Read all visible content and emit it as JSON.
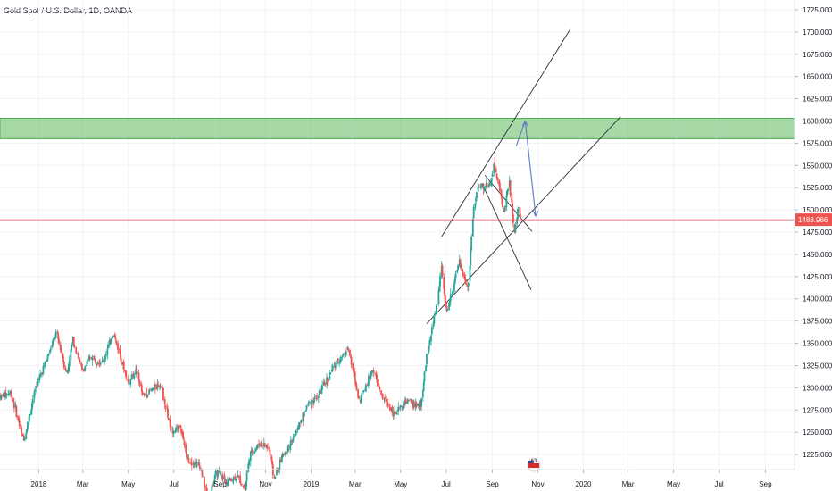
{
  "header": {
    "title": "Gold Spot / U.S. Dollar, 1D, OANDA"
  },
  "chart_data": {
    "type": "candlestick",
    "symbol": "Gold Spot / U.S. Dollar",
    "interval": "1D",
    "source": "OANDA",
    "ylim": [
      1207,
      1730
    ],
    "y_ticks": [
      1225,
      1250,
      1275,
      1300,
      1325,
      1350,
      1375,
      1400,
      1425,
      1450,
      1475,
      1500,
      1525,
      1550,
      1575,
      1600,
      1625,
      1650,
      1675,
      1700,
      1725
    ],
    "y_tick_labels": [
      "1225.000",
      "1250.000",
      "1275.000",
      "1300.000",
      "1325.000",
      "1350.000",
      "1375.000",
      "1400.000",
      "1425.000",
      "1450.000",
      "1475.000",
      "1500.000",
      "1525.000",
      "1550.000",
      "1575.000",
      "1600.000",
      "1625.000",
      "1650.000",
      "1675.000",
      "1700.000",
      "1725.000"
    ],
    "x_ticks": [
      {
        "label": "2018",
        "date": "2018-01-01"
      },
      {
        "label": "Mar",
        "date": "2018-03-01"
      },
      {
        "label": "May",
        "date": "2018-05-01"
      },
      {
        "label": "Jul",
        "date": "2018-07-01"
      },
      {
        "label": "Sep",
        "date": "2018-09-01"
      },
      {
        "label": "Nov",
        "date": "2018-11-01"
      },
      {
        "label": "2019",
        "date": "2019-01-01"
      },
      {
        "label": "Mar",
        "date": "2019-03-01"
      },
      {
        "label": "May",
        "date": "2019-05-01"
      },
      {
        "label": "Jul",
        "date": "2019-07-01"
      },
      {
        "label": "Sep",
        "date": "2019-09-01"
      },
      {
        "label": "Nov",
        "date": "2019-11-01"
      },
      {
        "label": "2020",
        "date": "2020-01-01"
      },
      {
        "label": "Mar",
        "date": "2020-03-01"
      },
      {
        "label": "May",
        "date": "2020-05-01"
      },
      {
        "label": "Jul",
        "date": "2020-07-01"
      },
      {
        "label": "Sep",
        "date": "2020-09-01"
      }
    ],
    "x_range": [
      "2017-11-10",
      "2020-10-10"
    ],
    "last_price": 1488.966,
    "last_price_label": "1488.966",
    "price_path": [
      [
        "2017-11-10",
        1290
      ],
      [
        "2017-11-25",
        1295
      ],
      [
        "2017-12-12",
        1240
      ],
      [
        "2017-12-28",
        1300
      ],
      [
        "2018-01-12",
        1332
      ],
      [
        "2018-01-25",
        1362
      ],
      [
        "2018-02-08",
        1315
      ],
      [
        "2018-02-16",
        1355
      ],
      [
        "2018-03-01",
        1318
      ],
      [
        "2018-03-12",
        1335
      ],
      [
        "2018-03-28",
        1328
      ],
      [
        "2018-04-11",
        1362
      ],
      [
        "2018-04-20",
        1338
      ],
      [
        "2018-05-01",
        1305
      ],
      [
        "2018-05-12",
        1320
      ],
      [
        "2018-05-21",
        1290
      ],
      [
        "2018-06-05",
        1300
      ],
      [
        "2018-06-14",
        1305
      ],
      [
        "2018-06-28",
        1250
      ],
      [
        "2018-07-10",
        1258
      ],
      [
        "2018-07-19",
        1220
      ],
      [
        "2018-08-06",
        1212
      ],
      [
        "2018-08-16",
        1175
      ],
      [
        "2018-08-28",
        1205
      ],
      [
        "2018-09-10",
        1195
      ],
      [
        "2018-09-25",
        1200
      ],
      [
        "2018-10-05",
        1186
      ],
      [
        "2018-10-11",
        1225
      ],
      [
        "2018-10-26",
        1238
      ],
      [
        "2018-11-06",
        1232
      ],
      [
        "2018-11-13",
        1198
      ],
      [
        "2018-11-23",
        1222
      ],
      [
        "2018-12-10",
        1245
      ],
      [
        "2018-12-28",
        1282
      ],
      [
        "2019-01-10",
        1290
      ],
      [
        "2019-01-31",
        1322
      ],
      [
        "2019-02-20",
        1345
      ],
      [
        "2019-03-07",
        1285
      ],
      [
        "2019-03-25",
        1322
      ],
      [
        "2019-04-05",
        1292
      ],
      [
        "2019-04-24",
        1270
      ],
      [
        "2019-05-10",
        1285
      ],
      [
        "2019-05-28",
        1278
      ],
      [
        "2019-06-06",
        1338
      ],
      [
        "2019-06-20",
        1398
      ],
      [
        "2019-06-25",
        1438
      ],
      [
        "2019-07-02",
        1384
      ],
      [
        "2019-07-19",
        1440
      ],
      [
        "2019-07-31",
        1412
      ],
      [
        "2019-08-07",
        1500
      ],
      [
        "2019-08-13",
        1524
      ],
      [
        "2019-08-30",
        1530
      ],
      [
        "2019-09-04",
        1552
      ],
      [
        "2019-09-17",
        1498
      ],
      [
        "2019-09-24",
        1532
      ],
      [
        "2019-10-01",
        1472
      ],
      [
        "2019-10-06",
        1504
      ],
      [
        "2019-10-10",
        1488.966
      ]
    ],
    "resistance_zone": {
      "from": 1580,
      "to": 1603
    }
  }
}
